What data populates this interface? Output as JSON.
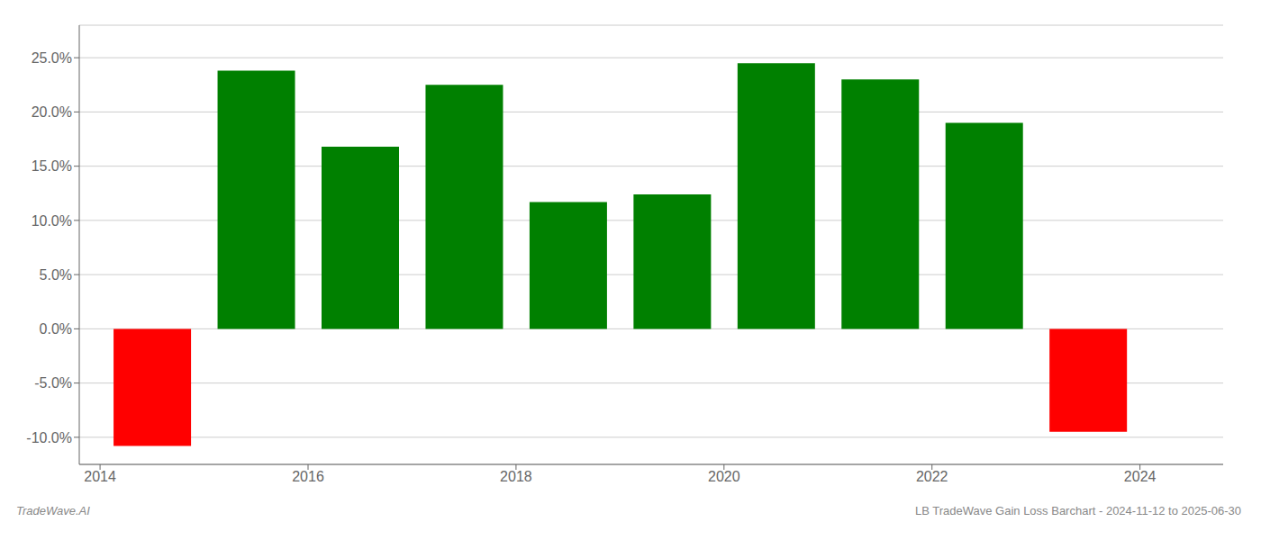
{
  "chart_data": {
    "type": "bar",
    "x": [
      2014.5,
      2015.5,
      2016.5,
      2017.5,
      2018.5,
      2019.5,
      2020.5,
      2021.5,
      2022.5,
      2023.5
    ],
    "values": [
      -10.8,
      23.8,
      16.8,
      22.5,
      11.7,
      12.4,
      24.5,
      23.0,
      19.0,
      -9.5
    ],
    "colors": [
      "#ff0000",
      "#008000",
      "#008000",
      "#008000",
      "#008000",
      "#008000",
      "#008000",
      "#008000",
      "#008000",
      "#ff0000"
    ],
    "xlim": [
      2013.8,
      2024.8
    ],
    "xticks": [
      2014,
      2016,
      2018,
      2020,
      2022,
      2024
    ],
    "ylim": [
      -12.5,
      28.0
    ],
    "yticks": [
      {
        "value": -10.0,
        "label": "-10.0%"
      },
      {
        "value": -5.0,
        "label": "-5.0%"
      },
      {
        "value": 0.0,
        "label": "0.0%"
      },
      {
        "value": 5.0,
        "label": "5.0%"
      },
      {
        "value": 10.0,
        "label": "10.0%"
      },
      {
        "value": 15.0,
        "label": "15.0%"
      },
      {
        "value": 20.0,
        "label": "20.0%"
      },
      {
        "value": 25.0,
        "label": "25.0%"
      }
    ],
    "grid": true,
    "annotations": [
      "TradeWave.AI",
      "LB TradeWave Gain Loss Barchart - 2024-11-12 to 2025-06-30"
    ]
  }
}
